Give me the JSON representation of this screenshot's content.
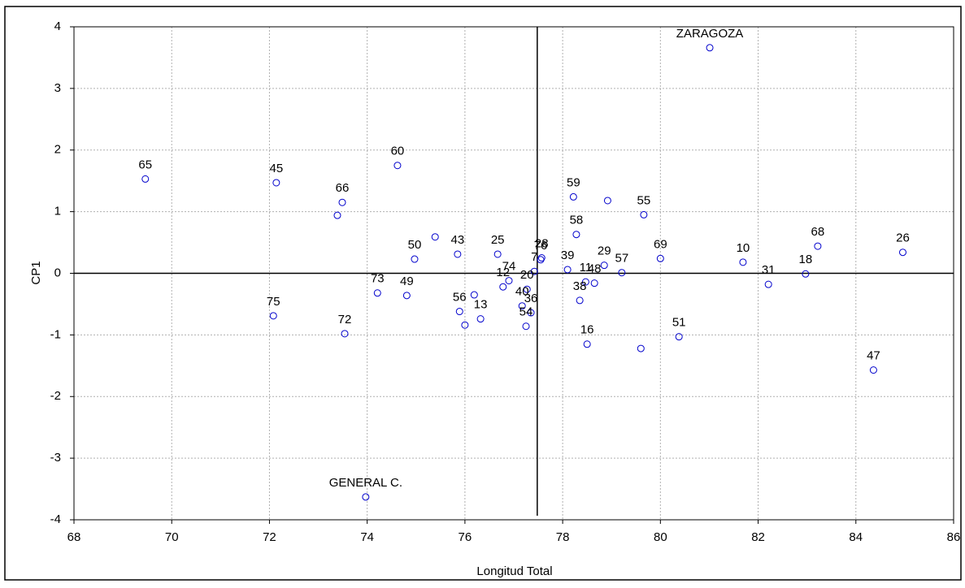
{
  "chart_data": {
    "type": "scatter",
    "xlabel": "Longitud Total",
    "ylabel": "CP1",
    "xlim": [
      68,
      86
    ],
    "ylim": [
      -4,
      4
    ],
    "xticks": [
      68,
      70,
      72,
      74,
      76,
      78,
      80,
      82,
      84,
      86
    ],
    "yticks": [
      -4,
      -3,
      -2,
      -1,
      0,
      1,
      2,
      3,
      4
    ],
    "grid": true,
    "color": "#0000cc",
    "reference_lines": {
      "x": 77.48,
      "y": 0
    },
    "labels": [
      "65",
      "45",
      "66",
      null,
      "60",
      "50",
      null,
      "43",
      "25",
      "76",
      "28",
      "7",
      "74",
      "12",
      "20",
      "40",
      "36",
      "54",
      "56",
      null,
      "13",
      null,
      "73",
      "49",
      "75",
      "72",
      "GENERAL C.",
      "ZARAGOZA",
      "59",
      null,
      "55",
      "58",
      "39",
      "29",
      "57",
      "11",
      "48",
      "38",
      "16",
      null,
      "51",
      "69",
      "10",
      "31",
      "18",
      "68",
      "26",
      "47"
    ],
    "x": [
      69.46,
      72.14,
      73.49,
      73.39,
      74.62,
      74.97,
      75.39,
      75.85,
      76.67,
      77.55,
      77.57,
      77.42,
      76.9,
      76.78,
      77.27,
      77.17,
      77.35,
      77.25,
      75.89,
      76.19,
      76.32,
      76.0,
      74.21,
      74.81,
      72.08,
      73.54,
      73.97,
      81.01,
      78.22,
      78.92,
      79.66,
      78.28,
      78.1,
      78.85,
      79.21,
      78.47,
      78.65,
      78.35,
      78.5,
      79.6,
      80.38,
      80.0,
      81.69,
      82.21,
      82.97,
      83.22,
      84.96,
      84.36
    ],
    "y": [
      1.53,
      1.47,
      1.15,
      0.94,
      1.75,
      0.23,
      0.59,
      0.31,
      0.31,
      0.22,
      0.25,
      0.03,
      -0.12,
      -0.22,
      -0.26,
      -0.53,
      -0.64,
      -0.86,
      -0.62,
      -0.35,
      -0.74,
      -0.84,
      -0.32,
      -0.36,
      -0.69,
      -0.98,
      -3.63,
      3.66,
      1.24,
      1.18,
      0.95,
      0.63,
      0.06,
      0.13,
      0.01,
      -0.14,
      -0.16,
      -0.44,
      -1.15,
      -1.22,
      -1.03,
      0.24,
      0.18,
      -0.18,
      -0.01,
      0.44,
      0.34,
      -1.57
    ]
  }
}
